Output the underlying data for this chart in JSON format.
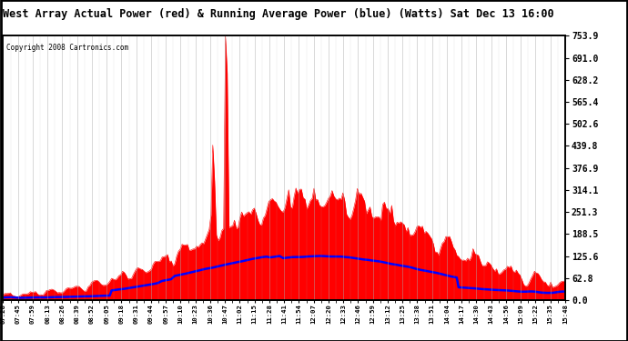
{
  "title": "West Array Actual Power (red) & Running Average Power (blue) (Watts) Sat Dec 13 16:00",
  "copyright": "Copyright 2008 Cartronics.com",
  "ylabel_right_values": [
    753.9,
    691.0,
    628.2,
    565.4,
    502.6,
    439.8,
    376.9,
    314.1,
    251.3,
    188.5,
    125.6,
    62.8,
    0.0
  ],
  "ymax": 753.9,
  "ymin": 0.0,
  "bg_color": "#ffffff",
  "plot_bg_color": "#ffffff",
  "grid_color": "#aaaaaa",
  "actual_color": "red",
  "avg_color": "blue",
  "x_labels": [
    "07:28",
    "07:45",
    "07:59",
    "08:13",
    "08:26",
    "08:39",
    "08:52",
    "09:05",
    "09:18",
    "09:31",
    "09:44",
    "09:57",
    "10:10",
    "10:23",
    "10:36",
    "10:47",
    "11:02",
    "11:15",
    "11:28",
    "11:41",
    "11:54",
    "12:07",
    "12:20",
    "12:33",
    "12:46",
    "12:59",
    "13:12",
    "13:25",
    "13:38",
    "13:51",
    "14:04",
    "14:17",
    "14:30",
    "14:43",
    "14:56",
    "15:09",
    "15:22",
    "15:35",
    "15:48"
  ]
}
